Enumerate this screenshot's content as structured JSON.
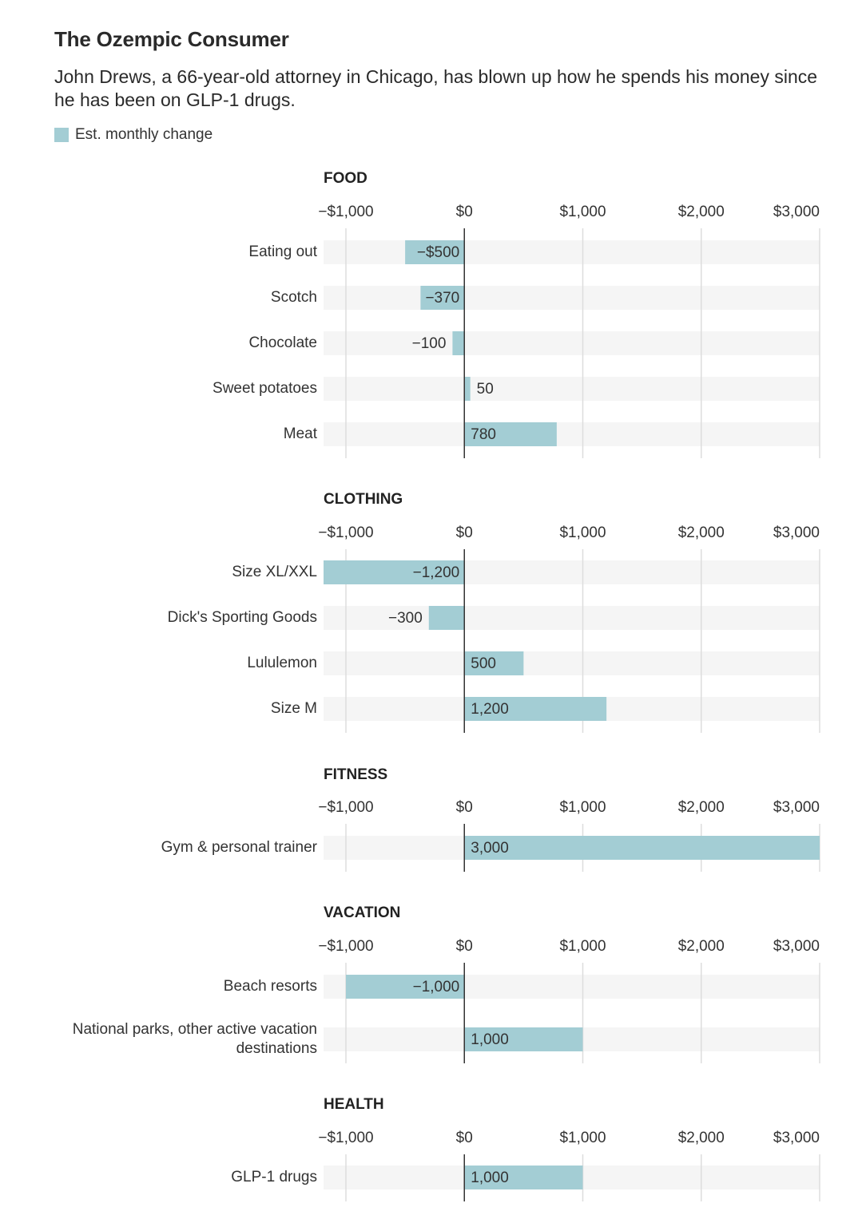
{
  "title": "The Ozempic Consumer",
  "subtitle": "John Drews, a 66-year-old attorney in Chicago, has blown up how he spends his money since he has been on GLP-1 drugs.",
  "legend": {
    "label": "Est. monthly change",
    "color": "#a3cdd4"
  },
  "colors": {
    "bar": "#a3cdd4",
    "track": "#f5f5f5",
    "gridline": "#dddddd",
    "zero_line": "#333333"
  },
  "chart_data": {
    "type": "bar",
    "orientation": "horizontal",
    "xlim": [
      -1000,
      3000
    ],
    "x_ticks": [
      -1000,
      0,
      1000,
      2000,
      3000
    ],
    "x_tick_labels": [
      "−$1,000",
      "$0",
      "$1,000",
      "$2,000",
      "$3,000"
    ],
    "groups": [
      {
        "name": "FOOD",
        "items": [
          {
            "label": "Eating out",
            "value": -500,
            "value_label": "−$500"
          },
          {
            "label": "Scotch",
            "value": -370,
            "value_label": "−370"
          },
          {
            "label": "Chocolate",
            "value": -100,
            "value_label": "−100"
          },
          {
            "label": "Sweet potatoes",
            "value": 50,
            "value_label": "50"
          },
          {
            "label": "Meat",
            "value": 780,
            "value_label": "780"
          }
        ]
      },
      {
        "name": "CLOTHING",
        "items": [
          {
            "label": "Size XL/XXL",
            "value": -1200,
            "value_label": "−1,200"
          },
          {
            "label": "Dick's Sporting Goods",
            "value": -300,
            "value_label": "−300"
          },
          {
            "label": "Lululemon",
            "value": 500,
            "value_label": "500"
          },
          {
            "label": "Size M",
            "value": 1200,
            "value_label": "1,200"
          }
        ]
      },
      {
        "name": "FITNESS",
        "items": [
          {
            "label": "Gym & personal trainer",
            "value": 3000,
            "value_label": "3,000"
          }
        ]
      },
      {
        "name": "VACATION",
        "items": [
          {
            "label": "Beach resorts",
            "value": -1000,
            "value_label": "−1,000"
          },
          {
            "label": "National parks, other active vacation destinations",
            "value": 1000,
            "value_label": "1,000"
          }
        ]
      },
      {
        "name": "HEALTH",
        "items": [
          {
            "label": "GLP-1 drugs",
            "value": 1000,
            "value_label": "1,000"
          }
        ]
      }
    ]
  }
}
